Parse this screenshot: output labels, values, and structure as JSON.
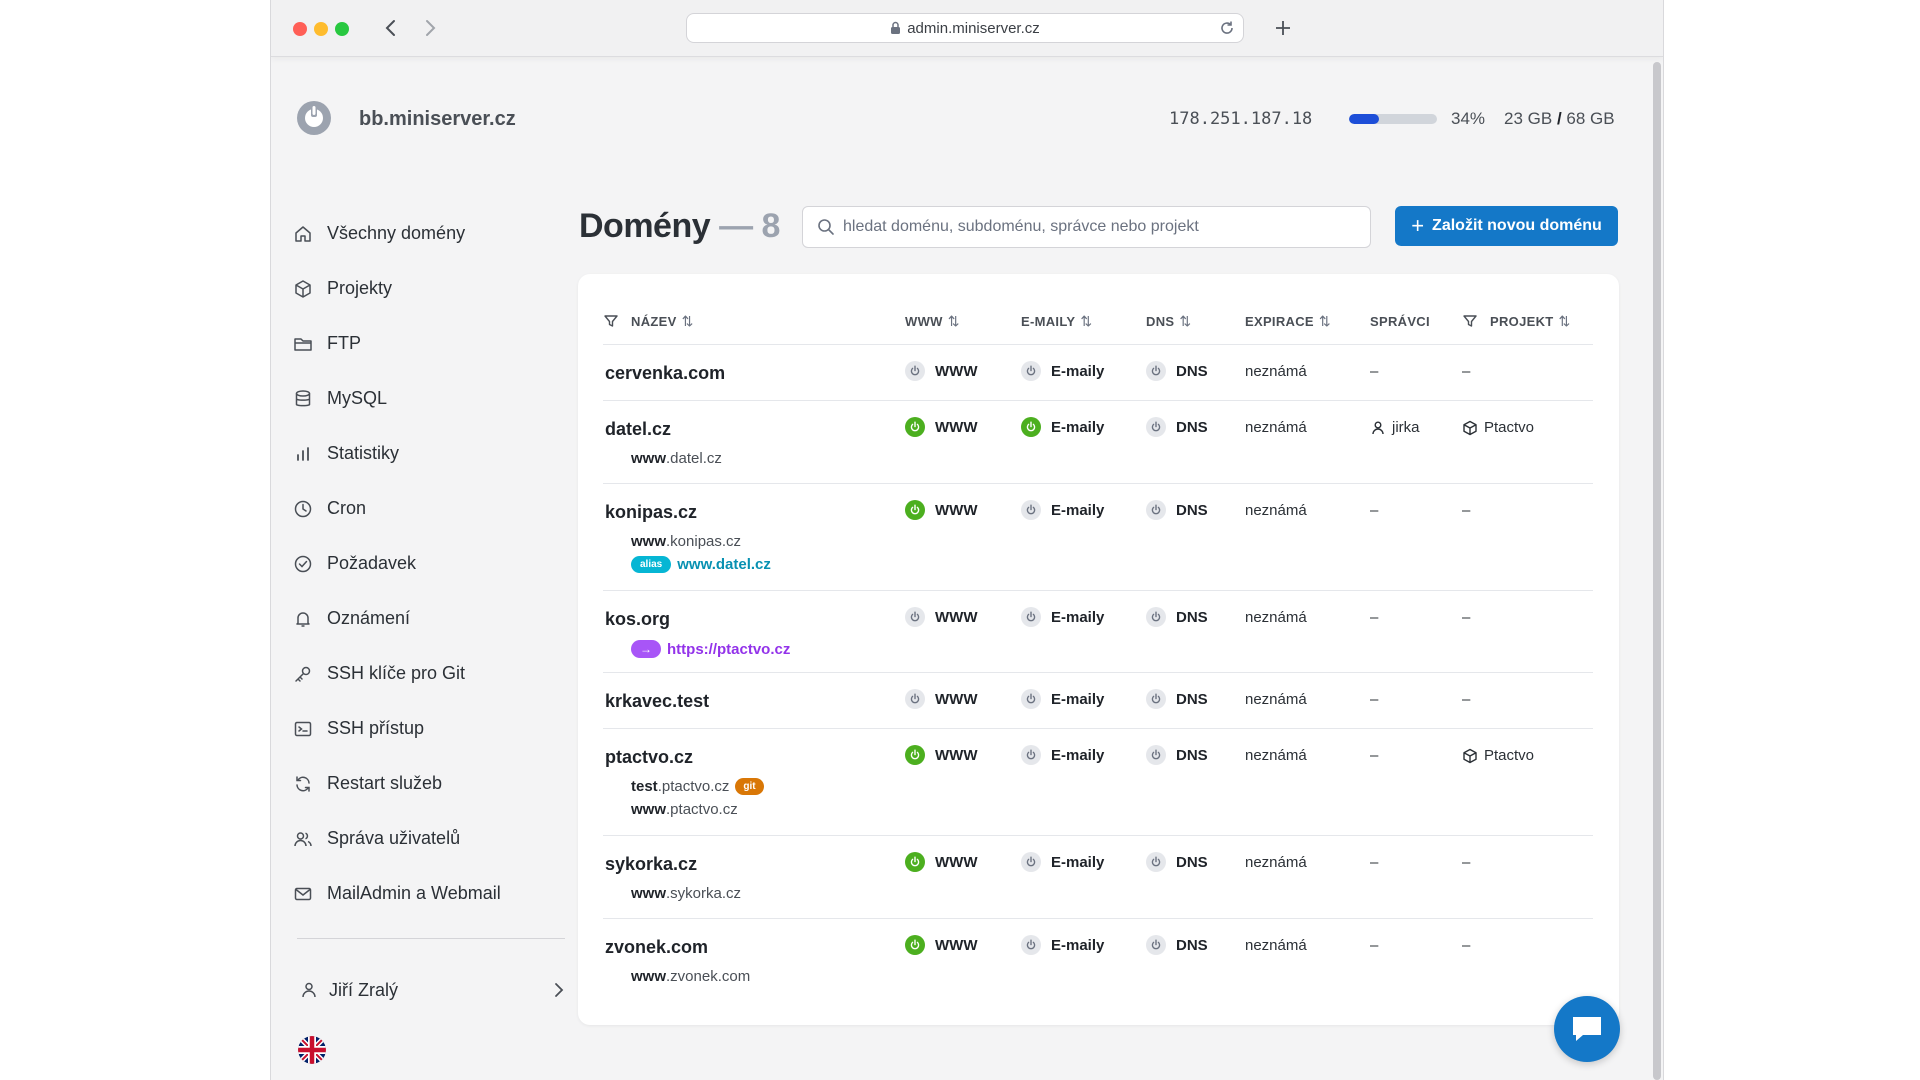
{
  "browser": {
    "url": "admin.miniserver.cz"
  },
  "header": {
    "server_name": "bb.miniserver.cz",
    "ip": "178.251.187.18",
    "disk_percent": 34,
    "disk_percent_label": "34%",
    "disk_used": "23 GB",
    "disk_separator": "/",
    "disk_total": "68 GB"
  },
  "sidebar": {
    "items": [
      {
        "label": "Všechny domény",
        "icon": "home-icon"
      },
      {
        "label": "Projekty",
        "icon": "cube-icon"
      },
      {
        "label": "FTP",
        "icon": "folder-icon"
      },
      {
        "label": "MySQL",
        "icon": "database-icon"
      },
      {
        "label": "Statistiky",
        "icon": "bar-chart-icon"
      },
      {
        "label": "Cron",
        "icon": "clock-icon"
      },
      {
        "label": "Požadavek",
        "icon": "check-circle-icon"
      },
      {
        "label": "Oznámení",
        "icon": "bell-icon"
      },
      {
        "label": "SSH klíče pro Git",
        "icon": "key-icon"
      },
      {
        "label": "SSH přístup",
        "icon": "terminal-icon"
      },
      {
        "label": "Restart služeb",
        "icon": "refresh-icon"
      },
      {
        "label": "Správa uživatelů",
        "icon": "users-icon"
      },
      {
        "label": "MailAdmin a Webmail",
        "icon": "mail-icon"
      }
    ],
    "user_name": "Jiří Zralý",
    "language_icon": "uk-flag-icon"
  },
  "main": {
    "title": "Domény",
    "count": "— 8",
    "search_placeholder": "hledat doménu, subdoménu, správce nebo projekt",
    "new_button": "Založit novou doménu"
  },
  "table": {
    "headers": {
      "name": "NÁZEV",
      "www": "WWW",
      "emails": "E-MAILY",
      "dns": "DNS",
      "expiry": "EXPIRACE",
      "admins": "SPRÁVCI",
      "project": "PROJEKT"
    },
    "sort_glyph": "⇅",
    "rows": [
      {
        "name": "cervenka.com",
        "www": "WWW",
        "www_on": false,
        "mail": "E-maily",
        "mail_on": false,
        "dns": "DNS",
        "expiry": "neznámá",
        "admin": "–",
        "project": "–"
      },
      {
        "name": "datel.cz",
        "sub_prefix": "www",
        "sub_rest": ".datel.cz",
        "www": "WWW",
        "www_on": true,
        "mail": "E-maily",
        "mail_on": true,
        "dns": "DNS",
        "expiry": "neznámá",
        "admin": "jirka",
        "project": "Ptactvo"
      },
      {
        "name": "konipas.cz",
        "sub_prefix": "www",
        "sub_rest": ".konipas.cz",
        "alias_badge": "alias",
        "alias": "www.datel.cz",
        "www": "WWW",
        "www_on": true,
        "mail": "E-maily",
        "mail_on": false,
        "dns": "DNS",
        "expiry": "neznámá",
        "admin": "–",
        "project": "–"
      },
      {
        "name": "kos.org",
        "redirect": "https://ptactvo.cz",
        "redirect_glyph": "→",
        "www": "WWW",
        "www_on": false,
        "mail": "E-maily",
        "mail_on": false,
        "dns": "DNS",
        "expiry": "neznámá",
        "admin": "–",
        "project": "–"
      },
      {
        "name": "krkavec.test",
        "www": "WWW",
        "www_on": false,
        "mail": "E-maily",
        "mail_on": false,
        "dns": "DNS",
        "expiry": "neznámá",
        "admin": "–",
        "project": "–"
      },
      {
        "name": "ptactvo.cz",
        "sub1_prefix": "test",
        "sub1_rest": ".ptactvo.cz",
        "git_badge": "git",
        "sub_prefix": "www",
        "sub_rest": ".ptactvo.cz",
        "www": "WWW",
        "www_on": true,
        "mail": "E-maily",
        "mail_on": false,
        "dns": "DNS",
        "expiry": "neznámá",
        "admin": "–",
        "project": "Ptactvo"
      },
      {
        "name": "sykorka.cz",
        "sub_prefix": "www",
        "sub_rest": ".sykorka.cz",
        "www": "WWW",
        "www_on": true,
        "mail": "E-maily",
        "mail_on": false,
        "dns": "DNS",
        "expiry": "neznámá",
        "admin": "–",
        "project": "–"
      },
      {
        "name": "zvonek.com",
        "sub_prefix": "www",
        "sub_rest": ".zvonek.com",
        "www": "WWW",
        "www_on": true,
        "mail": "E-maily",
        "mail_on": false,
        "dns": "DNS",
        "expiry": "neznámá",
        "admin": "–",
        "project": "–"
      }
    ]
  },
  "colors": {
    "primary": "#1478c8",
    "status_on": "#4caf1f",
    "alias": "#06b6d4",
    "redirect": "#a855f7",
    "git": "#d97706"
  }
}
